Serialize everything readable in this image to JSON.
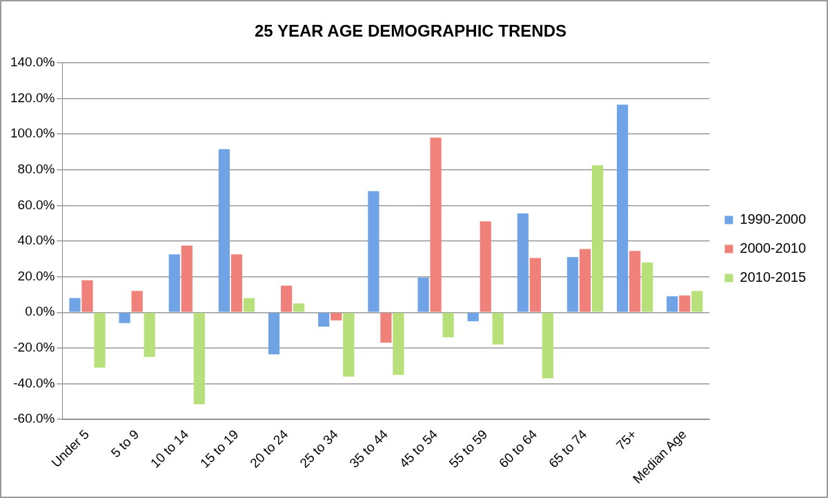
{
  "chart_data": {
    "type": "bar",
    "title": "25 YEAR AGE DEMOGRAPHIC TRENDS",
    "categories": [
      "Under 5",
      "5 to 9",
      "10 to 14",
      "15 to 19",
      "20 to 24",
      "25 to 34",
      "35 to 44",
      "45 to 54",
      "55 to 59",
      "60 to 64",
      "65 to 74",
      "75+",
      "Median Age"
    ],
    "series": [
      {
        "name": "1990-2000",
        "color": "#6fa3e6",
        "values": [
          8,
          -6,
          32.5,
          91.5,
          -23.5,
          -8,
          68,
          19.5,
          -5,
          55.5,
          31,
          116.5,
          9
        ]
      },
      {
        "name": "2000-2010",
        "color": "#f0807a",
        "values": [
          18,
          12,
          37.5,
          32.5,
          15,
          -4.5,
          -17,
          98,
          51,
          30.5,
          35.5,
          34.5,
          9.5
        ]
      },
      {
        "name": "2010-2015",
        "color": "#b8e07a",
        "values": [
          -31,
          -25,
          -51.5,
          8,
          5,
          -36,
          -35,
          -14,
          -18,
          -37,
          82.5,
          28,
          12
        ]
      }
    ],
    "ylim": [
      -60,
      140
    ],
    "yticks": [
      {
        "value": -60,
        "label": "-60.0%"
      },
      {
        "value": -40,
        "label": "-40.0%"
      },
      {
        "value": -20,
        "label": "-20.0%"
      },
      {
        "value": 0,
        "label": "0.0%"
      },
      {
        "value": 20,
        "label": "20.0%"
      },
      {
        "value": 40,
        "label": "40.0%"
      },
      {
        "value": 60,
        "label": "60.0%"
      },
      {
        "value": 80,
        "label": "80.0%"
      },
      {
        "value": 100,
        "label": "100.0%"
      },
      {
        "value": 120,
        "label": "120.0%"
      },
      {
        "value": 140,
        "label": "140.0%"
      }
    ],
    "grid": "y",
    "legend": "right"
  }
}
